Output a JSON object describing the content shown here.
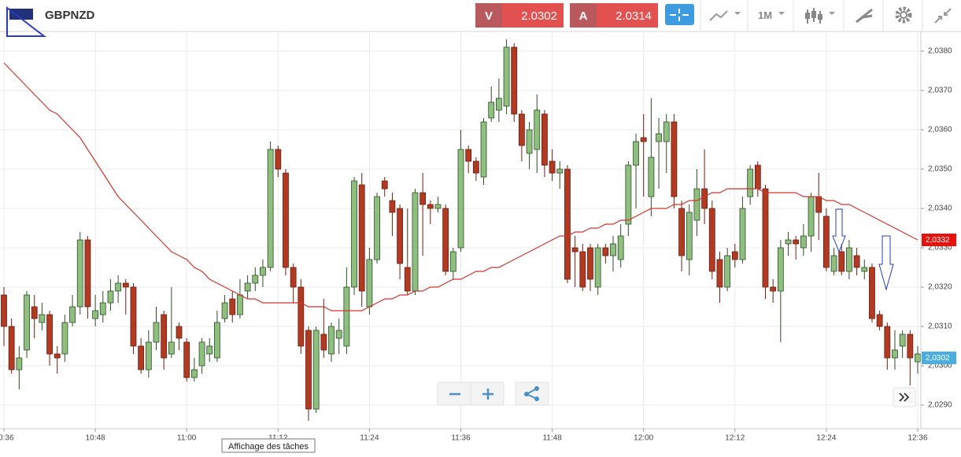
{
  "header": {
    "symbol": "GBPNZD",
    "sell_label": "V",
    "sell_price": "2.0302",
    "buy_label": "A",
    "buy_price": "2.0314",
    "timeframe": "1M"
  },
  "tooltip": "Affichage des tâches",
  "chart_data": {
    "type": "candlestick",
    "x": [
      "10:36",
      "10:37",
      "10:38",
      "10:39",
      "10:40",
      "10:41",
      "10:42",
      "10:43",
      "10:44",
      "10:45",
      "10:46",
      "10:47",
      "10:48",
      "10:49",
      "10:50",
      "10:51",
      "10:52",
      "10:53",
      "10:54",
      "10:55",
      "10:56",
      "10:57",
      "10:58",
      "10:59",
      "11:00",
      "11:01",
      "11:02",
      "11:03",
      "11:04",
      "11:05",
      "11:06",
      "11:07",
      "11:08",
      "11:09",
      "11:10",
      "11:11",
      "11:12",
      "11:13",
      "11:14",
      "11:15",
      "11:16",
      "11:17",
      "11:18",
      "11:19",
      "11:20",
      "11:21",
      "11:22",
      "11:23",
      "11:24",
      "11:25",
      "11:26",
      "11:27",
      "11:28",
      "11:29",
      "11:30",
      "11:31",
      "11:32",
      "11:33",
      "11:34",
      "11:35",
      "11:36",
      "11:37",
      "11:38",
      "11:39",
      "11:40",
      "11:41",
      "11:42",
      "11:43",
      "11:44",
      "11:45",
      "11:46",
      "11:47",
      "11:48",
      "11:49",
      "11:50",
      "11:51",
      "11:52",
      "11:53",
      "11:54",
      "11:55",
      "11:56",
      "11:57",
      "11:58",
      "11:59",
      "12:00",
      "12:01",
      "12:02",
      "12:03",
      "12:04",
      "12:05",
      "12:06",
      "12:07",
      "12:08",
      "12:09",
      "12:10",
      "12:11",
      "12:12",
      "12:13",
      "12:14",
      "12:15",
      "12:16",
      "12:17",
      "12:18",
      "12:19",
      "12:20",
      "12:21",
      "12:22",
      "12:23",
      "12:24",
      "12:25",
      "12:26",
      "12:27",
      "12:28",
      "12:29",
      "12:30",
      "12:31",
      "12:32",
      "12:33",
      "12:34",
      "12:35",
      "12:36"
    ],
    "open": [
      2.0318,
      2.031,
      2.0299,
      2.0304,
      2.0315,
      2.0311,
      2.0313,
      2.0303,
      2.0303,
      2.0311,
      2.0315,
      2.0332,
      2.0312,
      2.0313,
      2.0316,
      2.0319,
      2.0321,
      2.032,
      2.0305,
      2.0299,
      2.0306,
      2.0313,
      2.0303,
      2.031,
      2.0306,
      2.0297,
      2.03,
      2.0303,
      2.0302,
      2.0312,
      2.0317,
      2.0313,
      2.0319,
      2.0321,
      2.0323,
      2.0325,
      2.0355,
      2.0349,
      2.0325,
      2.032,
      2.0309,
      2.0289,
      2.0308,
      2.0303,
      2.0307,
      2.0305,
      2.032,
      2.0346,
      2.0315,
      2.0327,
      2.0347,
      2.0342,
      2.034,
      2.0325,
      2.0319,
      2.0344,
      2.0341,
      2.034,
      2.034,
      2.0324,
      2.033,
      2.0355,
      2.0352,
      2.0348,
      2.0363,
      2.0365,
      2.0366,
      2.0381,
      2.0364,
      2.0354,
      2.0355,
      2.0364,
      2.0352,
      2.0349,
      2.035,
      2.033,
      2.0329,
      2.033,
      2.032,
      2.033,
      2.0328,
      2.0327,
      2.0336,
      2.0351,
      2.0358,
      2.0343,
      2.0357,
      2.0357,
      2.0362,
      2.034,
      2.0327,
      2.0337,
      2.0345,
      2.034,
      2.0327,
      2.032,
      2.0329,
      2.0327,
      2.0343,
      2.0351,
      2.0345,
      2.032,
      2.0319,
      2.0331,
      2.0332,
      2.033,
      2.0333,
      2.0343,
      2.0338,
      2.0324,
      2.0329,
      2.0324,
      2.0328,
      2.0324,
      2.0325,
      2.0313,
      2.031,
      2.0302,
      2.0305,
      2.0308,
      2.0301
    ],
    "high": [
      2.032,
      2.0312,
      2.0305,
      2.0319,
      2.0318,
      2.0316,
      2.0314,
      2.0305,
      2.0313,
      2.0318,
      2.0334,
      2.0333,
      2.0318,
      2.0319,
      2.0322,
      2.0323,
      2.0322,
      2.0321,
      2.0307,
      2.0309,
      2.0315,
      2.0314,
      2.032,
      2.0311,
      2.0307,
      2.0302,
      2.0307,
      2.0307,
      2.0314,
      2.0318,
      2.0319,
      2.0322,
      2.0323,
      2.0325,
      2.0327,
      2.0357,
      2.0356,
      2.035,
      2.0326,
      2.0322,
      2.031,
      2.031,
      2.0317,
      2.0311,
      2.0312,
      2.0325,
      2.0348,
      2.0349,
      2.033,
      2.0344,
      2.0348,
      2.0344,
      2.0341,
      2.034,
      2.0345,
      2.0349,
      2.0342,
      2.0343,
      2.0341,
      2.033,
      2.036,
      2.0356,
      2.0353,
      2.0363,
      2.0371,
      2.0373,
      2.0383,
      2.0382,
      2.0365,
      2.0362,
      2.0369,
      2.0365,
      2.0355,
      2.0352,
      2.0351,
      2.0333,
      2.0331,
      2.0331,
      2.0331,
      2.0331,
      2.0333,
      2.0336,
      2.0352,
      2.0359,
      2.0364,
      2.0368,
      2.0363,
      2.0364,
      2.0364,
      2.0342,
      2.0341,
      2.035,
      2.0355,
      2.0342,
      2.0329,
      2.033,
      2.0331,
      2.0343,
      2.0351,
      2.0352,
      2.0346,
      2.0322,
      2.0332,
      2.0334,
      2.0333,
      2.0336,
      2.0344,
      2.0349,
      2.034,
      2.033,
      2.0331,
      2.0332,
      2.033,
      2.0327,
      2.0326,
      2.0314,
      2.0311,
      2.0309,
      2.0309,
      2.0309,
      2.0305
    ],
    "low": [
      2.0305,
      2.0298,
      2.0294,
      2.0302,
      2.0307,
      2.0309,
      2.03,
      2.0298,
      2.0301,
      2.031,
      2.0313,
      2.0312,
      2.031,
      2.0311,
      2.0314,
      2.0316,
      2.0313,
      2.0303,
      2.0298,
      2.0297,
      2.0304,
      2.0299,
      2.0302,
      2.0304,
      2.0296,
      2.0296,
      2.0298,
      2.0301,
      2.0301,
      2.0311,
      2.0311,
      2.0312,
      2.0317,
      2.0319,
      2.032,
      2.0324,
      2.0348,
      2.0323,
      2.0316,
      2.0303,
      2.0286,
      2.0288,
      2.0302,
      2.0301,
      2.0303,
      2.0303,
      2.0318,
      2.0315,
      2.0313,
      2.0326,
      2.0343,
      2.0333,
      2.0322,
      2.0318,
      2.0318,
      2.0328,
      2.0336,
      2.0339,
      2.0323,
      2.0322,
      2.0329,
      2.0349,
      2.0347,
      2.0346,
      2.0362,
      2.0362,
      2.0364,
      2.0362,
      2.0352,
      2.035,
      2.0349,
      2.0348,
      2.0347,
      2.0345,
      2.0321,
      2.032,
      2.0319,
      2.0319,
      2.0318,
      2.0326,
      2.0324,
      2.0325,
      2.0333,
      2.034,
      2.0343,
      2.0338,
      2.0345,
      2.0349,
      2.034,
      2.0324,
      2.0323,
      2.0333,
      2.0336,
      2.0322,
      2.0316,
      2.0319,
      2.0325,
      2.0326,
      2.0341,
      2.0343,
      2.0317,
      2.0316,
      2.0306,
      2.0328,
      2.0327,
      2.0328,
      2.0329,
      2.0332,
      2.0324,
      2.0323,
      2.0323,
      2.0322,
      2.0323,
      2.0322,
      2.0311,
      2.0309,
      2.0299,
      2.0299,
      2.0302,
      2.0295,
      2.0298
    ],
    "close": [
      2.031,
      2.0299,
      2.0302,
      2.0318,
      2.0312,
      2.0313,
      2.0303,
      2.0302,
      2.0311,
      2.0315,
      2.0332,
      2.0315,
      2.0314,
      2.0316,
      2.0319,
      2.0321,
      2.032,
      2.0305,
      2.0299,
      2.0306,
      2.0311,
      2.0302,
      2.0306,
      2.0307,
      2.0297,
      2.0299,
      2.0306,
      2.0305,
      2.0311,
      2.0316,
      2.0313,
      2.0318,
      2.0321,
      2.0323,
      2.0325,
      2.0355,
      2.035,
      2.0325,
      2.032,
      2.0305,
      2.0289,
      2.0309,
      2.0304,
      2.031,
      2.0309,
      2.032,
      2.0347,
      2.0319,
      2.0327,
      2.0343,
      2.0345,
      2.0339,
      2.0326,
      2.0319,
      2.0344,
      2.0341,
      2.034,
      2.0341,
      2.0324,
      2.0329,
      2.0355,
      2.0352,
      2.0349,
      2.0362,
      2.0367,
      2.0368,
      2.0381,
      2.0364,
      2.0356,
      2.036,
      2.0365,
      2.0351,
      2.0349,
      2.035,
      2.0322,
      2.0329,
      2.032,
      2.0322,
      2.033,
      2.0328,
      2.0331,
      2.0333,
      2.0351,
      2.0357,
      2.0357,
      2.0353,
      2.0359,
      2.0362,
      2.0343,
      2.0328,
      2.0339,
      2.0345,
      2.034,
      2.0324,
      2.032,
      2.0328,
      2.0327,
      2.034,
      2.035,
      2.0345,
      2.032,
      2.0319,
      2.033,
      2.0332,
      2.0331,
      2.0333,
      2.0343,
      2.0339,
      2.0325,
      2.0328,
      2.0324,
      2.033,
      2.0325,
      2.0325,
      2.0312,
      2.031,
      2.0302,
      2.0304,
      2.0308,
      2.0302,
      2.0303
    ],
    "up_color": "#8fbf7f",
    "down_color": "#b03a22",
    "ma": {
      "color": "#d0342c",
      "values": [
        2.0377,
        2.0375,
        2.0373,
        2.0371,
        2.0369,
        2.0367,
        2.0365,
        2.0364,
        2.0362,
        2.036,
        2.0358,
        2.0355,
        2.0352,
        2.0349,
        2.0346,
        2.0343,
        2.0341,
        2.0339,
        2.0337,
        2.0335,
        2.0333,
        2.0331,
        2.0329,
        2.0328,
        2.0327,
        2.0325,
        2.0324,
        2.0322,
        2.0321,
        2.032,
        2.0319,
        2.0318,
        2.0317,
        2.0317,
        2.0316,
        2.0316,
        2.0316,
        2.0316,
        2.0316,
        2.0316,
        2.0315,
        2.0315,
        2.0315,
        2.0314,
        2.0314,
        2.0314,
        2.0314,
        2.0314,
        2.0315,
        2.0316,
        2.0317,
        2.0317,
        2.0318,
        2.0318,
        2.0319,
        2.0319,
        2.032,
        2.032,
        2.0321,
        2.0322,
        2.0322,
        2.0323,
        2.0324,
        2.0324,
        2.0325,
        2.0325,
        2.0326,
        2.0327,
        2.0328,
        2.0329,
        2.033,
        2.0331,
        2.0332,
        2.0333,
        2.0333,
        2.0334,
        2.0334,
        2.0335,
        2.0335,
        2.0336,
        2.0336,
        2.0337,
        2.0337,
        2.0338,
        2.0339,
        2.034,
        2.034,
        2.034,
        2.0341,
        2.0341,
        2.0342,
        2.0342,
        2.0343,
        2.0344,
        2.0344,
        2.0345,
        2.0345,
        2.0345,
        2.0345,
        2.0345,
        2.0344,
        2.0344,
        2.0344,
        2.0344,
        2.0344,
        2.0343,
        2.0343,
        2.0343,
        2.0342,
        2.0342,
        2.0341,
        2.0341,
        2.034,
        2.0339,
        2.0338,
        2.0337,
        2.0336,
        2.0335,
        2.0334,
        2.0333,
        2.0332
      ]
    },
    "ylim": [
      2.0284,
      2.0385
    ],
    "yticks": [
      {
        "value": 2.029,
        "label": "2,0290"
      },
      {
        "value": 2.03,
        "label": "2,0300"
      },
      {
        "value": 2.031,
        "label": "2,0310"
      },
      {
        "value": 2.032,
        "label": "2,0320"
      },
      {
        "value": 2.033,
        "label": "2,0330"
      },
      {
        "value": 2.034,
        "label": "2,0340"
      },
      {
        "value": 2.035,
        "label": "2,0350"
      },
      {
        "value": 2.036,
        "label": "2,0360"
      },
      {
        "value": 2.037,
        "label": "2,0370"
      },
      {
        "value": 2.038,
        "label": "2,0380"
      }
    ],
    "xticks": [
      "10:36",
      "10:48",
      "11:00",
      "11:12",
      "11:24",
      "11:36",
      "11:48",
      "12:00",
      "12:12",
      "12:24",
      "12:36"
    ],
    "grid": true,
    "price_markers": [
      {
        "value": 2.0332,
        "label": "2,0332",
        "color": "#e8120c"
      },
      {
        "value": 2.0302,
        "label": "2,0302",
        "color": "#4aaee0"
      }
    ]
  }
}
